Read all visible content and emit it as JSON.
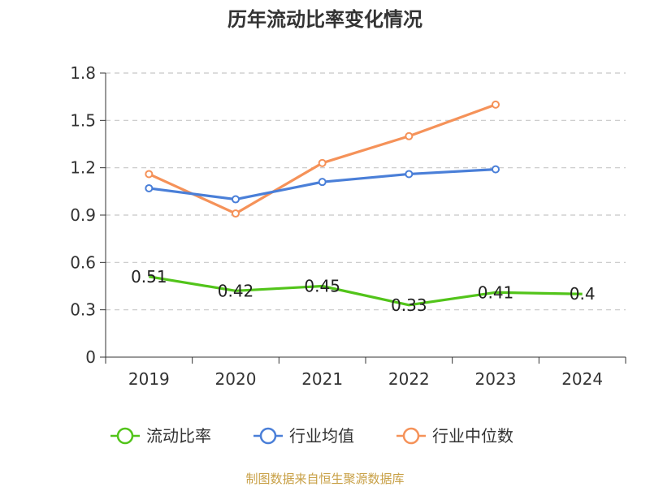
{
  "chart_data": {
    "type": "line",
    "title": "历年流动比率变化情况",
    "categories": [
      "2019",
      "2020",
      "2021",
      "2022",
      "2023",
      "2024"
    ],
    "ylim": [
      0,
      1.8
    ],
    "yticks": [
      "0",
      "0.3",
      "0.6",
      "0.9",
      "1.2",
      "1.5",
      "1.8"
    ],
    "grid": true,
    "legend_position": "bottom",
    "series": [
      {
        "name": "流动比率",
        "color": "#52c41a",
        "values": [
          0.51,
          0.42,
          0.45,
          0.33,
          0.41,
          0.4
        ],
        "labels": [
          "0.51",
          "0.42",
          "0.45",
          "0.33",
          "0.41",
          "0.4"
        ],
        "show_markers": false,
        "show_labels": true
      },
      {
        "name": "行业均值",
        "color": "#4a7fd8",
        "values": [
          1.07,
          1.0,
          1.11,
          1.16,
          1.19,
          null
        ],
        "show_markers": true,
        "show_labels": false
      },
      {
        "name": "行业中位数",
        "color": "#f59259",
        "values": [
          1.16,
          0.91,
          1.23,
          1.4,
          1.6,
          null
        ],
        "show_markers": true,
        "show_labels": false
      }
    ]
  },
  "source_text": "制图数据来自恒生聚源数据库",
  "source_color": "#c8a046"
}
